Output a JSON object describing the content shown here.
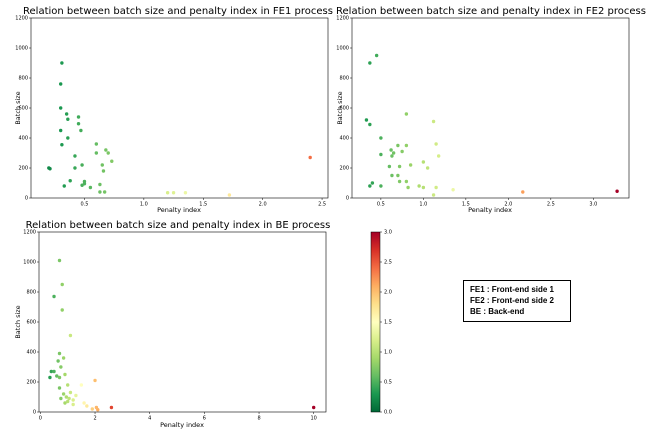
{
  "chart_data": [
    {
      "type": "scatter",
      "title": "Relation between batch size and penalty index in FE1 process",
      "xlabel": "Penalty index",
      "ylabel": "Batch size",
      "xlim": [
        0.05,
        2.55
      ],
      "ylim": [
        0,
        1200
      ],
      "xticks": [
        "0.5",
        "1.0",
        "1.5",
        "2.0",
        "2.5"
      ],
      "xtick_values": [
        0.5,
        1.0,
        1.5,
        2.0,
        2.5
      ],
      "yticks": [
        "0",
        "200",
        "400",
        "600",
        "800",
        "1000",
        "1200"
      ],
      "ytick_values": [
        0,
        200,
        400,
        600,
        800,
        1000,
        1200
      ],
      "color_by": "penalty index",
      "points": [
        {
          "x": 0.2,
          "y": 200
        },
        {
          "x": 0.21,
          "y": 195
        },
        {
          "x": 0.31,
          "y": 900
        },
        {
          "x": 0.3,
          "y": 760
        },
        {
          "x": 0.3,
          "y": 600
        },
        {
          "x": 0.3,
          "y": 450
        },
        {
          "x": 0.31,
          "y": 355
        },
        {
          "x": 0.35,
          "y": 560
        },
        {
          "x": 0.36,
          "y": 525
        },
        {
          "x": 0.36,
          "y": 400
        },
        {
          "x": 0.33,
          "y": 80
        },
        {
          "x": 0.38,
          "y": 115
        },
        {
          "x": 0.42,
          "y": 280
        },
        {
          "x": 0.42,
          "y": 200
        },
        {
          "x": 0.45,
          "y": 540
        },
        {
          "x": 0.45,
          "y": 495
        },
        {
          "x": 0.47,
          "y": 450
        },
        {
          "x": 0.48,
          "y": 85
        },
        {
          "x": 0.48,
          "y": 220
        },
        {
          "x": 0.5,
          "y": 110
        },
        {
          "x": 0.5,
          "y": 95
        },
        {
          "x": 0.55,
          "y": 70
        },
        {
          "x": 0.6,
          "y": 360
        },
        {
          "x": 0.6,
          "y": 300
        },
        {
          "x": 0.65,
          "y": 220
        },
        {
          "x": 0.66,
          "y": 180
        },
        {
          "x": 0.68,
          "y": 320
        },
        {
          "x": 0.7,
          "y": 300
        },
        {
          "x": 0.73,
          "y": 245
        },
        {
          "x": 0.63,
          "y": 90
        },
        {
          "x": 0.63,
          "y": 40
        },
        {
          "x": 0.67,
          "y": 40
        },
        {
          "x": 1.2,
          "y": 35
        },
        {
          "x": 1.25,
          "y": 35
        },
        {
          "x": 1.35,
          "y": 35
        },
        {
          "x": 1.72,
          "y": 20
        },
        {
          "x": 2.4,
          "y": 270
        }
      ]
    },
    {
      "type": "scatter",
      "title": "Relation between batch size and penalty index in FE2 process",
      "xlabel": "Penalty index",
      "ylabel": "Batch size",
      "xlim": [
        0.16,
        3.42
      ],
      "ylim": [
        0,
        1200
      ],
      "xticks": [
        "0.5",
        "1.0",
        "1.5",
        "2.0",
        "2.5",
        "3.0"
      ],
      "xtick_values": [
        0.5,
        1.0,
        1.5,
        2.0,
        2.5,
        3.0
      ],
      "yticks": [
        "0",
        "200",
        "400",
        "600",
        "800",
        "1000",
        "1200"
      ],
      "ytick_values": [
        0,
        200,
        400,
        600,
        800,
        1000,
        1200
      ],
      "color_by": "penalty index",
      "points": [
        {
          "x": 0.45,
          "y": 950
        },
        {
          "x": 0.37,
          "y": 900
        },
        {
          "x": 0.33,
          "y": 520
        },
        {
          "x": 0.37,
          "y": 490
        },
        {
          "x": 0.37,
          "y": 80
        },
        {
          "x": 0.4,
          "y": 100
        },
        {
          "x": 0.5,
          "y": 400
        },
        {
          "x": 0.5,
          "y": 290
        },
        {
          "x": 0.5,
          "y": 80
        },
        {
          "x": 0.62,
          "y": 320
        },
        {
          "x": 0.63,
          "y": 280
        },
        {
          "x": 0.6,
          "y": 210
        },
        {
          "x": 0.63,
          "y": 150
        },
        {
          "x": 0.65,
          "y": 300
        },
        {
          "x": 0.7,
          "y": 350
        },
        {
          "x": 0.72,
          "y": 210
        },
        {
          "x": 0.7,
          "y": 150
        },
        {
          "x": 0.72,
          "y": 110
        },
        {
          "x": 0.75,
          "y": 310
        },
        {
          "x": 0.8,
          "y": 560
        },
        {
          "x": 0.8,
          "y": 350
        },
        {
          "x": 0.85,
          "y": 220
        },
        {
          "x": 0.8,
          "y": 110
        },
        {
          "x": 0.82,
          "y": 70
        },
        {
          "x": 0.95,
          "y": 80
        },
        {
          "x": 1.0,
          "y": 240
        },
        {
          "x": 1.0,
          "y": 70
        },
        {
          "x": 1.05,
          "y": 200
        },
        {
          "x": 1.12,
          "y": 510
        },
        {
          "x": 1.15,
          "y": 360
        },
        {
          "x": 1.18,
          "y": 280
        },
        {
          "x": 1.12,
          "y": 20
        },
        {
          "x": 1.15,
          "y": 70
        },
        {
          "x": 1.35,
          "y": 55
        },
        {
          "x": 2.17,
          "y": 40
        },
        {
          "x": 3.28,
          "y": 45
        }
      ]
    },
    {
      "type": "scatter",
      "title": "Relation between batch size and penalty index in BE process",
      "xlabel": "Penalty index",
      "ylabel": "Batch size",
      "xlim": [
        -0.05,
        10.45
      ],
      "ylim": [
        0,
        1200
      ],
      "xticks": [
        "0",
        "2",
        "4",
        "6",
        "8",
        "10"
      ],
      "xtick_values": [
        0,
        2,
        4,
        6,
        8,
        10
      ],
      "yticks": [
        "0",
        "200",
        "400",
        "600",
        "800",
        "1000",
        "1200"
      ],
      "ytick_values": [
        0,
        200,
        400,
        600,
        800,
        1000,
        1200
      ],
      "color_by": "penalty index",
      "points": [
        {
          "x": 0.7,
          "y": 1010
        },
        {
          "x": 0.8,
          "y": 850
        },
        {
          "x": 0.5,
          "y": 770
        },
        {
          "x": 0.8,
          "y": 680
        },
        {
          "x": 1.1,
          "y": 510
        },
        {
          "x": 0.7,
          "y": 390
        },
        {
          "x": 0.65,
          "y": 340
        },
        {
          "x": 0.75,
          "y": 300
        },
        {
          "x": 0.85,
          "y": 360
        },
        {
          "x": 0.4,
          "y": 270
        },
        {
          "x": 0.5,
          "y": 270
        },
        {
          "x": 0.35,
          "y": 230
        },
        {
          "x": 0.6,
          "y": 240
        },
        {
          "x": 0.7,
          "y": 230
        },
        {
          "x": 0.9,
          "y": 250
        },
        {
          "x": 1.0,
          "y": 180
        },
        {
          "x": 0.7,
          "y": 160
        },
        {
          "x": 0.85,
          "y": 120
        },
        {
          "x": 0.95,
          "y": 100
        },
        {
          "x": 1.05,
          "y": 90
        },
        {
          "x": 1.1,
          "y": 130
        },
        {
          "x": 1.2,
          "y": 80
        },
        {
          "x": 0.75,
          "y": 90
        },
        {
          "x": 0.9,
          "y": 60
        },
        {
          "x": 1.0,
          "y": 70
        },
        {
          "x": 1.3,
          "y": 110
        },
        {
          "x": 1.5,
          "y": 180
        },
        {
          "x": 1.6,
          "y": 60
        },
        {
          "x": 1.2,
          "y": 50
        },
        {
          "x": 1.7,
          "y": 40
        },
        {
          "x": 1.9,
          "y": 20
        },
        {
          "x": 2.0,
          "y": 210
        },
        {
          "x": 2.1,
          "y": 15
        },
        {
          "x": 2.05,
          "y": 30
        },
        {
          "x": 2.6,
          "y": 30
        },
        {
          "x": 10.0,
          "y": 30
        }
      ]
    },
    {
      "type": "colorbar",
      "ticks": [
        "0.0",
        "0.5",
        "1.0",
        "1.5",
        "2.0",
        "2.5",
        "3.0"
      ],
      "tick_values": [
        0,
        0.5,
        1.0,
        1.5,
        2.0,
        2.5,
        3.0
      ],
      "range": [
        0,
        3.0
      ],
      "colormap": "RdYlGn_r",
      "colors": [
        "#006837",
        "#1a9850",
        "#66bd63",
        "#a6d96a",
        "#d9ef8b",
        "#ffffbf",
        "#fee08b",
        "#fdae61",
        "#f46d43",
        "#d73027",
        "#a50026"
      ]
    }
  ],
  "legend_box": {
    "lines": [
      "FE1 : Front-end side 1",
      "FE2 : Front-end side 2",
      "BE   : Back-end"
    ]
  }
}
